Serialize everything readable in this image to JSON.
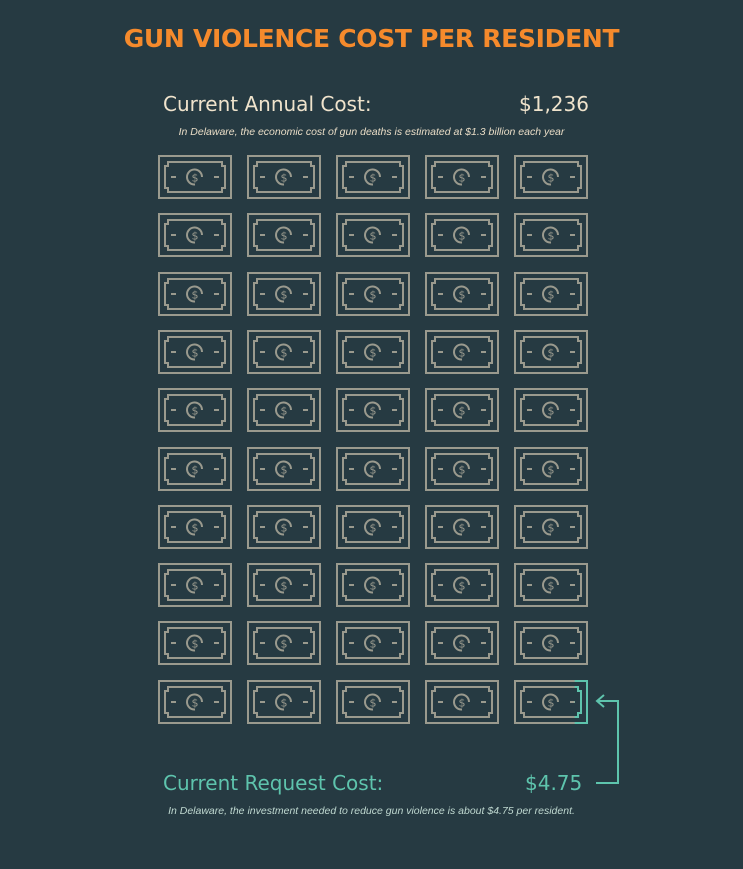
{
  "title": "GUN VIOLENCE COST PER RESIDENT",
  "annual": {
    "label": "Current Annual Cost:",
    "value": "$1,236",
    "note": "In Delaware, the economic cost of gun deaths is estimated at $1.3 billion each year"
  },
  "request": {
    "label": "Current Request Cost:",
    "value": "$4.75",
    "note": "In Delaware, the investment needed to reduce gun violence is about $4.75 per resident."
  },
  "grid": {
    "rows": 10,
    "cols": 5,
    "icon": "dollar-bill-icon",
    "bill_color": "#9a9a8e",
    "highlight_color": "#5ec4ad",
    "highlight_fraction_last_bill": 0.18
  },
  "colors": {
    "background": "#263a42",
    "title": "#f58a2c",
    "annual_text": "#efe3cc",
    "request_text": "#5ec4ad"
  }
}
